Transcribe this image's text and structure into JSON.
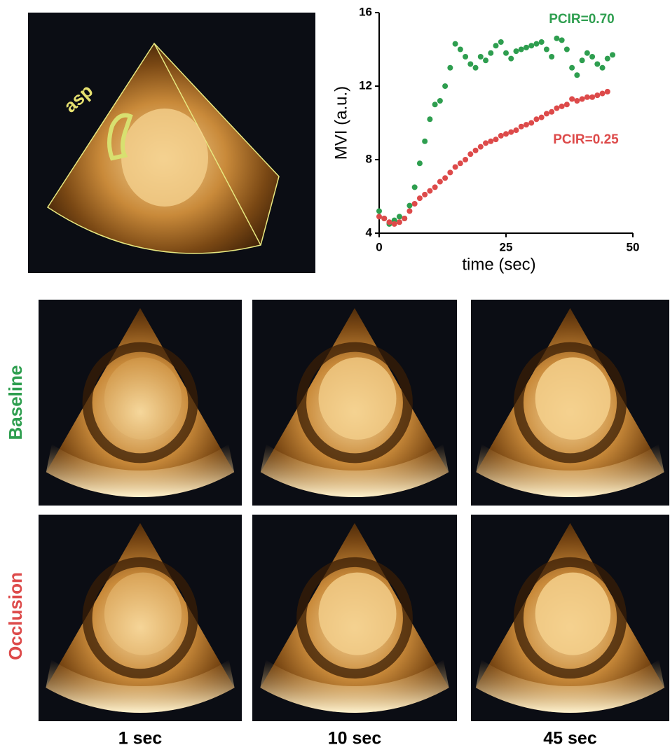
{
  "chart_data": {
    "type": "scatter",
    "xlabel": "time (sec)",
    "ylabel": "MVI (a.u.)",
    "xlim": [
      0,
      50
    ],
    "xticks": [
      0,
      25,
      50
    ],
    "ylim": [
      4,
      16
    ],
    "yticks": [
      4,
      8,
      12,
      16
    ],
    "series": [
      {
        "name": "PCIR=0.70",
        "color": "#2e9e4f",
        "x": [
          0,
          1,
          2,
          3,
          4,
          5,
          6,
          7,
          8,
          9,
          10,
          11,
          12,
          13,
          14,
          15,
          16,
          17,
          18,
          19,
          20,
          21,
          22,
          23,
          24,
          25,
          26,
          27,
          28,
          29,
          30,
          31,
          32,
          33,
          34,
          35,
          36,
          37,
          38,
          39,
          40,
          41,
          42,
          43,
          44,
          45,
          46
        ],
        "values": [
          5.2,
          4.8,
          4.5,
          4.7,
          4.9,
          4.8,
          5.5,
          6.5,
          7.8,
          9.0,
          10.2,
          11.0,
          11.2,
          12.0,
          13.0,
          14.3,
          14.0,
          13.6,
          13.2,
          13.0,
          13.6,
          13.4,
          13.8,
          14.2,
          14.4,
          13.8,
          13.5,
          13.9,
          14.0,
          14.1,
          14.2,
          14.3,
          14.4,
          14.0,
          13.6,
          14.6,
          14.5,
          14.0,
          13.0,
          12.6,
          13.4,
          13.8,
          13.6,
          13.2,
          13.0,
          13.5,
          13.7
        ]
      },
      {
        "name": "PCIR=0.25",
        "color": "#dd4a4a",
        "x": [
          0,
          1,
          2,
          3,
          4,
          5,
          6,
          7,
          8,
          9,
          10,
          11,
          12,
          13,
          14,
          15,
          16,
          17,
          18,
          19,
          20,
          21,
          22,
          23,
          24,
          25,
          26,
          27,
          28,
          29,
          30,
          31,
          32,
          33,
          34,
          35,
          36,
          37,
          38,
          39,
          40,
          41,
          42,
          43,
          44,
          45
        ],
        "values": [
          4.9,
          4.8,
          4.6,
          4.5,
          4.6,
          4.8,
          5.2,
          5.6,
          5.9,
          6.1,
          6.3,
          6.5,
          6.8,
          7.0,
          7.3,
          7.6,
          7.8,
          8.0,
          8.3,
          8.5,
          8.7,
          8.9,
          9.0,
          9.1,
          9.3,
          9.4,
          9.5,
          9.6,
          9.8,
          9.9,
          10.0,
          10.2,
          10.3,
          10.5,
          10.6,
          10.8,
          10.9,
          11.0,
          11.3,
          11.2,
          11.3,
          11.4,
          11.4,
          11.5,
          11.6,
          11.7
        ]
      }
    ]
  },
  "image_labels": {
    "inset": "asp",
    "rows": [
      "Baseline",
      "Occlusion"
    ],
    "columns": [
      "1 sec",
      "10 sec",
      "45 sec"
    ]
  }
}
